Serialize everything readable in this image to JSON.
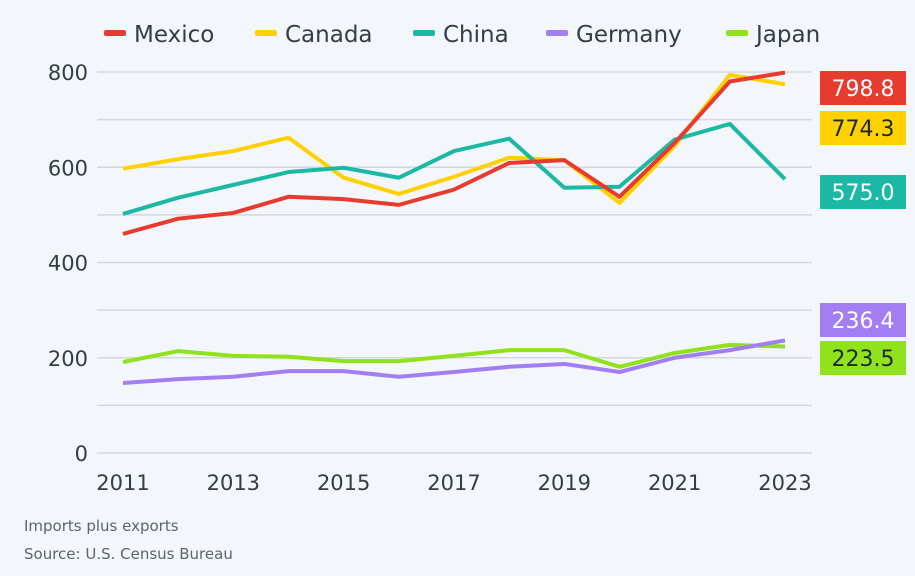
{
  "chart_data": {
    "type": "line",
    "x": [
      2011,
      2012,
      2013,
      2014,
      2015,
      2016,
      2017,
      2018,
      2019,
      2020,
      2021,
      2022,
      2023
    ],
    "x_tick_labels": [
      "2011",
      "2013",
      "2015",
      "2017",
      "2019",
      "2021",
      "2023"
    ],
    "y_tick_labels": [
      "0",
      "200",
      "400",
      "600",
      "800"
    ],
    "ylim": [
      0,
      800
    ],
    "grid": true,
    "legend_position": "top",
    "series": [
      {
        "name": "Mexico",
        "color": "#e63b2e",
        "end_label": "798.8",
        "label_text_color": "#ffffff",
        "values": [
          460,
          492,
          504,
          538,
          533,
          521,
          553,
          609,
          615,
          538,
          651,
          780,
          798.8
        ]
      },
      {
        "name": "Canada",
        "color": "#ffd100",
        "end_label": "774.3",
        "label_text_color": "#1d2a33",
        "values": [
          597,
          617,
          634,
          662,
          578,
          544,
          580,
          620,
          615,
          525,
          645,
          794,
          774.3
        ]
      },
      {
        "name": "China",
        "color": "#1cb8a6",
        "end_label": "575.0",
        "label_text_color": "#ffffff",
        "values": [
          502,
          536,
          563,
          590,
          599,
          578,
          634,
          660,
          557,
          559,
          658,
          691,
          575.0
        ]
      },
      {
        "name": "Germany",
        "color": "#a27ef2",
        "end_label": "236.4",
        "label_text_color": "#ffffff",
        "values": [
          147,
          155,
          160,
          172,
          172,
          160,
          170,
          181,
          187,
          170,
          200,
          216,
          236.4
        ]
      },
      {
        "name": "Japan",
        "color": "#8fe21c",
        "end_label": "223.5",
        "label_text_color": "#1d2a33",
        "values": [
          191,
          214,
          204,
          202,
          193,
          193,
          204,
          216,
          216,
          181,
          210,
          227,
          223.5
        ]
      }
    ]
  },
  "footer": {
    "note": "Imports plus exports",
    "source": "Source: U.S. Census Bureau"
  }
}
